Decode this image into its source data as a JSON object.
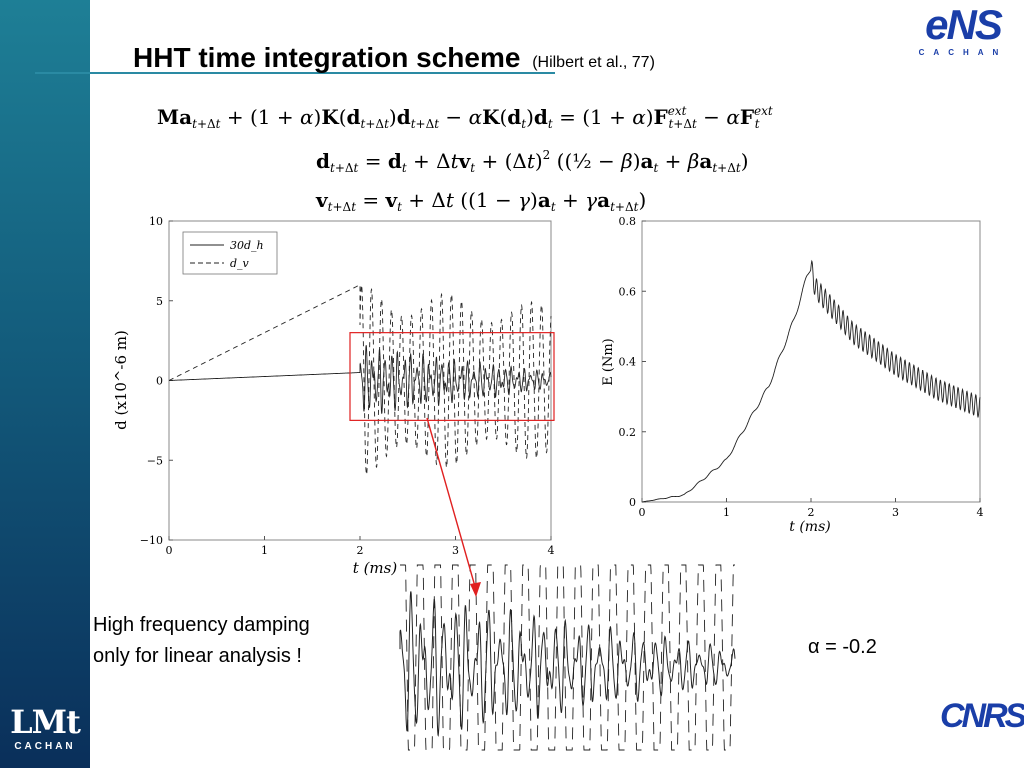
{
  "slide": {
    "title": "HHT time integration scheme",
    "title_ref": "(Hilbert et al., 77)",
    "note_line1": "High frequency damping",
    "note_line2": "only for linear analysis !",
    "alpha_label": "α = -0.2"
  },
  "logos": {
    "lmt_mark": "LMt",
    "lmt_sub": "CACHAN",
    "ens_mark": "eNS",
    "ens_sub": "CACHAN",
    "cnrs_mark": "CNRS"
  },
  "equations": {
    "eq1": "Ma_{t+Δt} + (1+α)K(d_{t+Δt})d_{t+Δt} − αK(d_t)d_t = (1+α)F^{ext}_{t+Δt} − αF^{ext}_t",
    "eq2": "d_{t+Δt} = d_t + Δt v_t + (Δt)^2 ((1/2 − β)a_t + β a_{t+Δt})",
    "eq3": "v_{t+Δt} = v_t + Δt ((1−γ)a_t + γ a_{t+Δt})"
  },
  "colors": {
    "accent_line": "#2a8aa3",
    "highlight_box": "#e02020",
    "logo_blue": "#1a3ea8"
  },
  "chart_data": [
    {
      "type": "line",
      "xlabel": "t (ms)",
      "ylabel": "d (x10^-6 m)",
      "xlim": [
        0,
        4
      ],
      "ylim": [
        -10,
        10
      ],
      "xticks": [
        "0",
        "1",
        "2",
        "3",
        "4"
      ],
      "yticks": [
        "10",
        "5",
        "0",
        "−5",
        "−10"
      ],
      "legend_position": "top-left",
      "series": [
        {
          "name": "30d_h",
          "style": "solid",
          "description_points": {
            "x": [
              0,
              2,
              4
            ],
            "y": [
              0,
              0.5,
              0
            ]
          },
          "oscillation": {
            "start": 2,
            "amplitude": 2.5,
            "decay_to": 0.6
          }
        },
        {
          "name": "d_v",
          "style": "dashed",
          "description_points": {
            "x": [
              0,
              2,
              4
            ],
            "y": [
              0,
              6,
              0
            ]
          },
          "oscillation": {
            "start": 2,
            "amplitude": 6,
            "decay_to": 4.8
          }
        }
      ],
      "highlight": {
        "x": [
          2,
          4
        ],
        "y": [
          -2.5,
          3
        ]
      }
    },
    {
      "type": "line",
      "xlabel": "t (ms)",
      "ylabel": "E (Nm)",
      "xlim": [
        0,
        4
      ],
      "ylim": [
        0,
        0.8
      ],
      "xticks": [
        "0",
        "1",
        "2",
        "3",
        "4"
      ],
      "yticks": [
        "0.8",
        "0.6",
        "0.4",
        "0.2",
        "0"
      ],
      "series": [
        {
          "name": "E",
          "x": [
            0,
            0.5,
            1,
            1.5,
            1.8,
            1.95,
            2.0,
            2.05,
            2.5,
            3.0,
            3.5,
            4.0
          ],
          "y": [
            0,
            0.02,
            0.12,
            0.33,
            0.52,
            0.64,
            0.67,
            0.61,
            0.48,
            0.39,
            0.32,
            0.27
          ],
          "oscillation_amplitude_after_2": 0.03
        }
      ]
    }
  ]
}
